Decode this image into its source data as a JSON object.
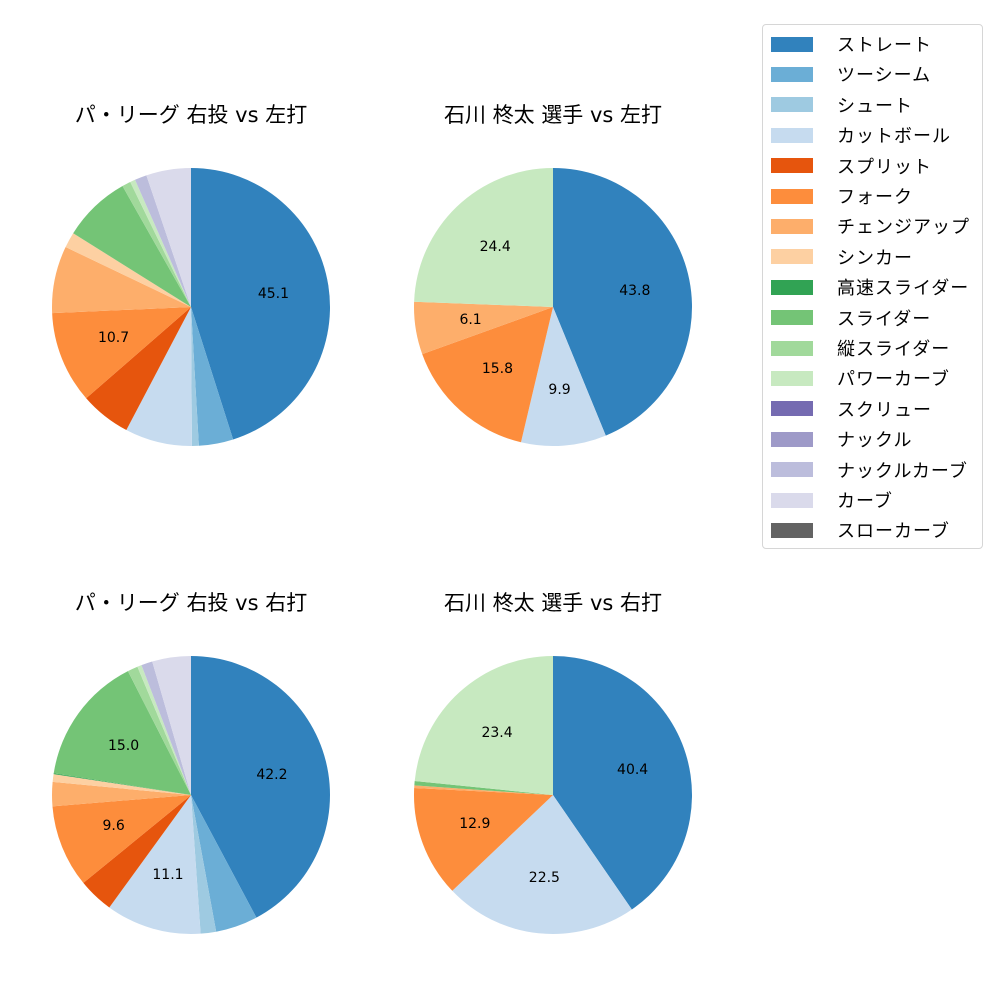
{
  "legend": {
    "items": [
      {
        "label": "ストレート",
        "color": "#3182bd"
      },
      {
        "label": "ツーシーム",
        "color": "#6baed6"
      },
      {
        "label": "シュート",
        "color": "#9ecae1"
      },
      {
        "label": "カットボール",
        "color": "#c6dbef"
      },
      {
        "label": "スプリット",
        "color": "#e6550d"
      },
      {
        "label": "フォーク",
        "color": "#fd8d3c"
      },
      {
        "label": "チェンジアップ",
        "color": "#fdae6b"
      },
      {
        "label": "シンカー",
        "color": "#fdd0a2"
      },
      {
        "label": "高速スライダー",
        "color": "#31a354"
      },
      {
        "label": "スライダー",
        "color": "#74c476"
      },
      {
        "label": "縦スライダー",
        "color": "#a1d99b"
      },
      {
        "label": "パワーカーブ",
        "color": "#c7e9c0"
      },
      {
        "label": "スクリュー",
        "color": "#756bb1"
      },
      {
        "label": "ナックル",
        "color": "#9e9ac8"
      },
      {
        "label": "ナックルカーブ",
        "color": "#bcbddc"
      },
      {
        "label": "カーブ",
        "color": "#dadaeb"
      },
      {
        "label": "スローカーブ",
        "color": "#636363"
      }
    ]
  },
  "chart_data": [
    {
      "type": "pie",
      "title": "パ・リーグ 右投 vs 左打",
      "start_angle": 90,
      "direction": "clockwise",
      "label_threshold": 10,
      "categories": [
        "ストレート",
        "ツーシーム",
        "シュート",
        "カットボール",
        "スプリット",
        "フォーク",
        "チェンジアップ",
        "シンカー",
        "スライダー",
        "縦スライダー",
        "パワーカーブ",
        "ナックルカーブ",
        "カーブ"
      ],
      "values": [
        45.1,
        4.0,
        0.8,
        7.8,
        5.9,
        10.7,
        7.8,
        1.8,
        7.9,
        1.0,
        0.6,
        1.4,
        5.2
      ],
      "shown_labels": [
        "45.1",
        "10.7"
      ]
    },
    {
      "type": "pie",
      "title": "石川 柊太 選手 vs 左打",
      "start_angle": 90,
      "direction": "clockwise",
      "label_threshold": 5,
      "categories": [
        "ストレート",
        "カットボール",
        "フォーク",
        "チェンジアップ",
        "パワーカーブ"
      ],
      "values": [
        43.8,
        9.9,
        15.8,
        6.1,
        24.4
      ],
      "shown_labels": [
        "43.8",
        "9.9",
        "15.8",
        "6.1",
        "24.4"
      ]
    },
    {
      "type": "pie",
      "title": "パ・リーグ 右投 vs 右打",
      "start_angle": 90,
      "direction": "clockwise",
      "label_threshold": 9,
      "categories": [
        "ストレート",
        "ツーシーム",
        "シュート",
        "カットボール",
        "スプリット",
        "フォーク",
        "チェンジアップ",
        "シンカー",
        "高速スライダー",
        "スライダー",
        "縦スライダー",
        "パワーカーブ",
        "ナックルカーブ",
        "カーブ"
      ],
      "values": [
        42.2,
        4.9,
        1.8,
        11.1,
        4.1,
        9.6,
        2.8,
        0.9,
        0.1,
        15.0,
        1.2,
        0.5,
        1.3,
        4.5
      ],
      "shown_labels": [
        "42.2",
        "11.1",
        "9.6",
        "15.0"
      ]
    },
    {
      "type": "pie",
      "title": "石川 柊太 選手 vs 右打",
      "start_angle": 90,
      "direction": "clockwise",
      "label_threshold": 5,
      "categories": [
        "ストレート",
        "カットボール",
        "フォーク",
        "チェンジアップ",
        "スライダー",
        "パワーカーブ"
      ],
      "values": [
        40.4,
        22.5,
        12.9,
        0.3,
        0.5,
        23.4
      ],
      "shown_labels": [
        "40.4",
        "22.5",
        "12.9",
        "23.4"
      ]
    }
  ]
}
